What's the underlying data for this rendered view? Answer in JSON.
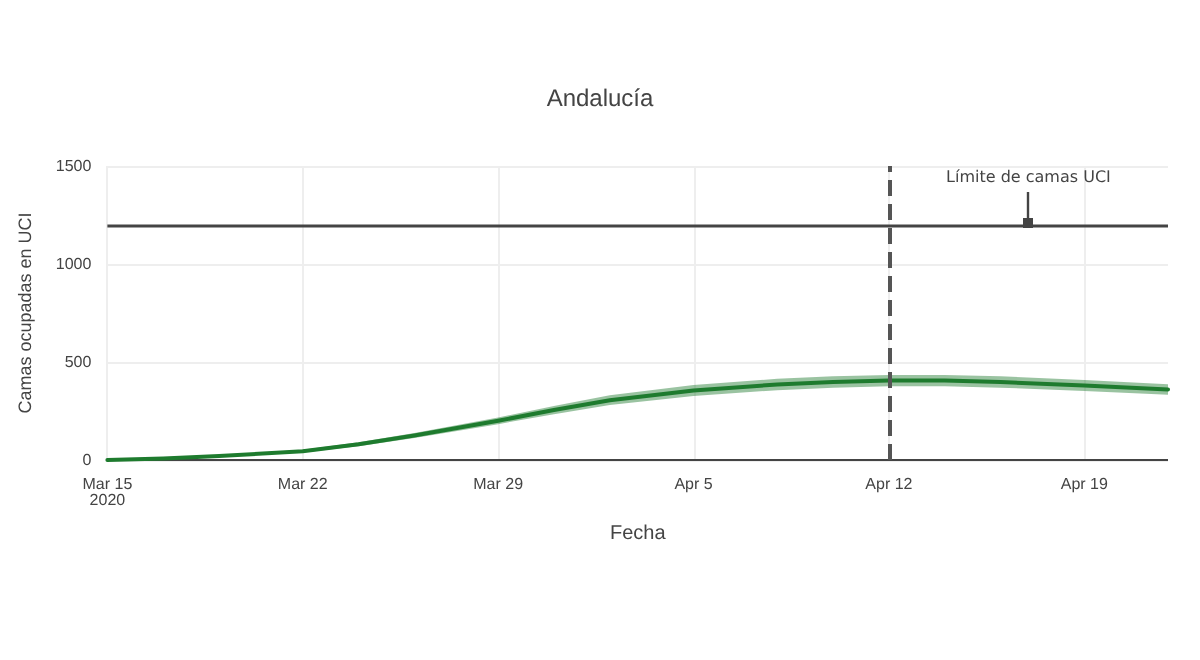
{
  "chart_data": {
    "type": "line",
    "title": "Andalucía",
    "xlabel": "Fecha",
    "ylabel": "Camas ocupadas en UCI",
    "x": [
      "2020-03-15",
      "2020-03-17",
      "2020-03-19",
      "2020-03-22",
      "2020-03-24",
      "2020-03-26",
      "2020-03-29",
      "2020-03-31",
      "2020-04-02",
      "2020-04-05",
      "2020-04-08",
      "2020-04-10",
      "2020-04-12",
      "2020-04-14",
      "2020-04-16",
      "2020-04-19",
      "2020-04-22"
    ],
    "series": [
      {
        "color": "#1e7b2e",
        "values": [
          0,
          8,
          20,
          45,
          80,
          125,
          200,
          255,
          305,
          355,
          385,
          398,
          405,
          405,
          398,
          380,
          360
        ],
        "lower": [
          0,
          6,
          16,
          38,
          70,
          112,
          183,
          234,
          280,
          327,
          356,
          369,
          376,
          376,
          369,
          352,
          333
        ],
        "upper": [
          0,
          10,
          24,
          52,
          90,
          138,
          217,
          276,
          330,
          383,
          414,
          427,
          434,
          434,
          427,
          408,
          387
        ]
      }
    ],
    "xlim": [
      "2020-03-15",
      "2020-04-22"
    ],
    "xticks": [
      {
        "value": "2020-03-15",
        "label": "Mar 15\n2020"
      },
      {
        "value": "2020-03-22",
        "label": "Mar 22"
      },
      {
        "value": "2020-03-29",
        "label": "Mar 29"
      },
      {
        "value": "2020-04-05",
        "label": "Apr 5"
      },
      {
        "value": "2020-04-12",
        "label": "Apr 12"
      },
      {
        "value": "2020-04-19",
        "label": "Apr 19"
      }
    ],
    "ylim": [
      0,
      1500
    ],
    "yticks": [
      0,
      500,
      1000,
      1500
    ],
    "grid": true,
    "marker": "none",
    "line_style": "solid",
    "ref_lines": [
      {
        "axis": "y",
        "value": 1200,
        "color": "#444444",
        "line_style": "solid"
      },
      {
        "axis": "x",
        "value": "2020-04-12",
        "color": "#555555",
        "line_style": "dashed"
      }
    ],
    "annotations": [
      {
        "text": "Límite de camas UCI",
        "x": "2020-04-17",
        "y": 1200
      }
    ]
  }
}
